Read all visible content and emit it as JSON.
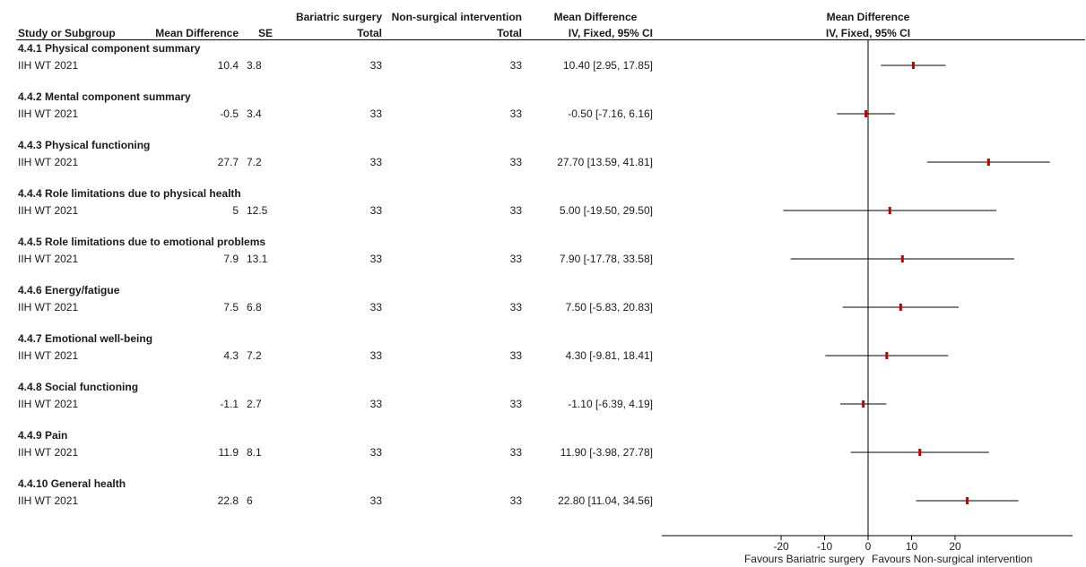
{
  "headers": {
    "study": "Study or Subgroup",
    "md": "Mean Difference",
    "se": "SE",
    "exp_group": "Bariatric surgery",
    "exp_total": "Total",
    "ctrl_group": "Non-surgical intervention",
    "ctrl_total": "Total",
    "ci_title": "Mean Difference",
    "ci_method": "IV, Fixed, 95% CI",
    "plot_title": "Mean Difference",
    "plot_method": "IV, Fixed, 95% CI"
  },
  "subgroups": [
    {
      "title": "4.4.1 Physical component summary",
      "study": "IIH WT 2021",
      "md": "10.4",
      "se": "3.8",
      "exp_total": "33",
      "ctrl_total": "33",
      "ci_text": "10.40 [2.95, 17.85]"
    },
    {
      "title": "4.4.2 Mental component summary",
      "study": "IIH WT 2021",
      "md": "-0.5",
      "se": "3.4",
      "exp_total": "33",
      "ctrl_total": "33",
      "ci_text": "-0.50 [-7.16, 6.16]"
    },
    {
      "title": "4.4.3 Physical functioning",
      "study": "IIH WT 2021",
      "md": "27.7",
      "se": "7.2",
      "exp_total": "33",
      "ctrl_total": "33",
      "ci_text": "27.70 [13.59, 41.81]"
    },
    {
      "title": "4.4.4 Role limitations due to physical health",
      "study": "IIH WT 2021",
      "md": "5",
      "se": "12.5",
      "exp_total": "33",
      "ctrl_total": "33",
      "ci_text": "5.00 [-19.50, 29.50]"
    },
    {
      "title": "4.4.5 Role limitations due to emotional problems",
      "study": "IIH WT 2021",
      "md": "7.9",
      "se": "13.1",
      "exp_total": "33",
      "ctrl_total": "33",
      "ci_text": "7.90 [-17.78, 33.58]"
    },
    {
      "title": "4.4.6 Energy/fatigue",
      "study": "IIH WT 2021",
      "md": "7.5",
      "se": "6.8",
      "exp_total": "33",
      "ctrl_total": "33",
      "ci_text": "7.50 [-5.83, 20.83]"
    },
    {
      "title": "4.4.7 Emotional well-being",
      "study": "IIH WT 2021",
      "md": "4.3",
      "se": "7.2",
      "exp_total": "33",
      "ctrl_total": "33",
      "ci_text": "4.30 [-9.81, 18.41]"
    },
    {
      "title": "4.4.8 Social functioning",
      "study": "IIH WT 2021",
      "md": "-1.1",
      "se": "2.7",
      "exp_total": "33",
      "ctrl_total": "33",
      "ci_text": "-1.10 [-6.39, 4.19]"
    },
    {
      "title": "4.4.9 Pain",
      "study": "IIH WT 2021",
      "md": "11.9",
      "se": "8.1",
      "exp_total": "33",
      "ctrl_total": "33",
      "ci_text": "11.90 [-3.98, 27.78]"
    },
    {
      "title": "4.4.10 General health",
      "study": "IIH WT 2021",
      "md": "22.8",
      "se": "6",
      "exp_total": "33",
      "ctrl_total": "33",
      "ci_text": "22.80 [11.04, 34.56]"
    }
  ],
  "chart_data": {
    "type": "forest",
    "x_ticks": [
      -20,
      -10,
      0,
      10,
      20
    ],
    "x_tick_labels": [
      "-20",
      "-10",
      "0",
      "10",
      "20"
    ],
    "xlim": [
      -40,
      43
    ],
    "reference_line": 0,
    "favours_left": "Favours Bariatric surgery",
    "favours_right": "Favours Non-surgical intervention",
    "points": [
      {
        "est": 10.4,
        "lo": 2.95,
        "hi": 17.85
      },
      {
        "est": -0.5,
        "lo": -7.16,
        "hi": 6.16
      },
      {
        "est": 27.7,
        "lo": 13.59,
        "hi": 41.81
      },
      {
        "est": 5.0,
        "lo": -19.5,
        "hi": 29.5
      },
      {
        "est": 7.9,
        "lo": -17.78,
        "hi": 33.58
      },
      {
        "est": 7.5,
        "lo": -5.83,
        "hi": 20.83
      },
      {
        "est": 4.3,
        "lo": -9.81,
        "hi": 18.41
      },
      {
        "est": -1.1,
        "lo": -6.39,
        "hi": 4.19
      },
      {
        "est": 11.9,
        "lo": -3.98,
        "hi": 27.78
      },
      {
        "est": 22.8,
        "lo": 11.04,
        "hi": 34.56
      }
    ],
    "colors": {
      "marker": "#c00000",
      "line": "#000000"
    }
  }
}
